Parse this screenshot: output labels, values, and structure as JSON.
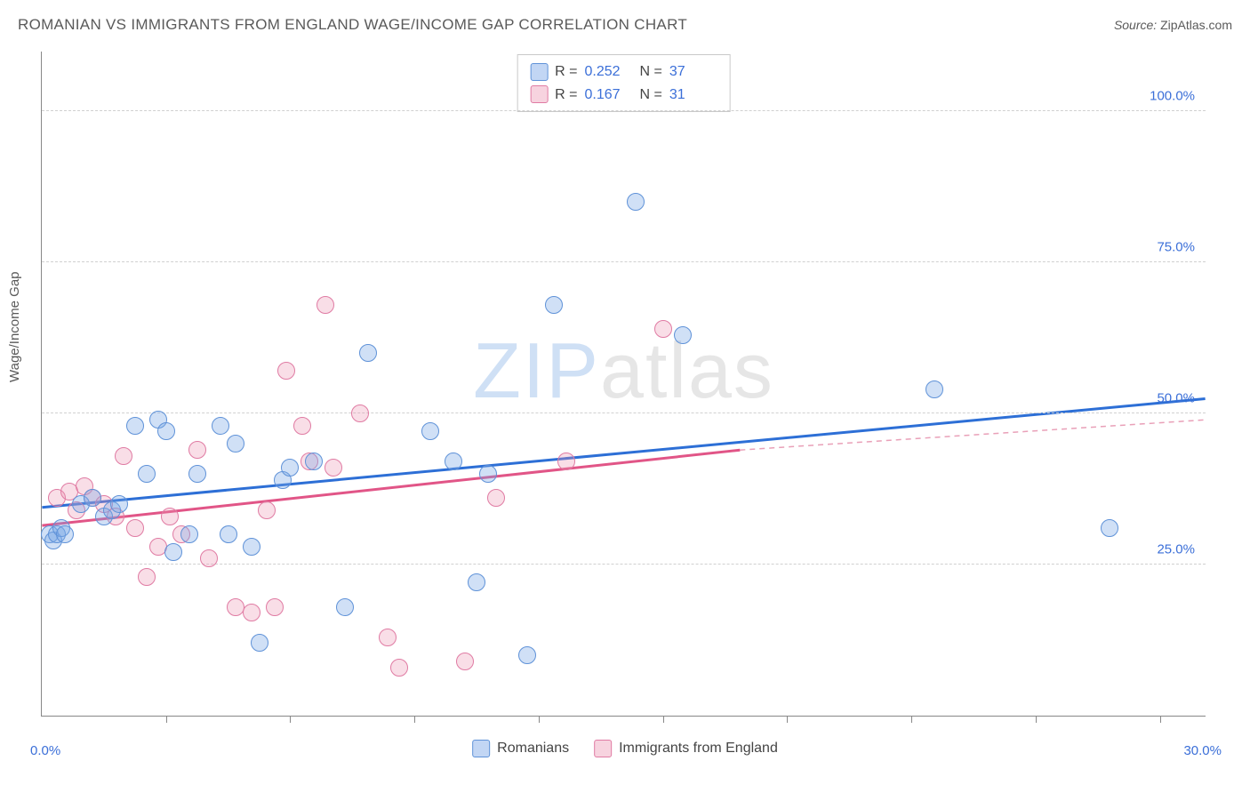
{
  "title": "ROMANIAN VS IMMIGRANTS FROM ENGLAND WAGE/INCOME GAP CORRELATION CHART",
  "source_label": "Source:",
  "source_value": "ZipAtlas.com",
  "watermark_z": "ZIP",
  "watermark_rest": "atlas",
  "ylabel": "Wage/Income Gap",
  "chart": {
    "type": "scatter",
    "xlim": [
      0,
      30
    ],
    "ylim": [
      0,
      110
    ],
    "y_ticks": [
      25,
      50,
      75,
      100
    ],
    "y_tick_labels": [
      "25.0%",
      "50.0%",
      "75.0%",
      "100.0%"
    ],
    "x_ticks": [
      3.2,
      6.4,
      9.6,
      12.8,
      16.0,
      19.2,
      22.4,
      25.6,
      28.8
    ],
    "x_min_label": "0.0%",
    "x_max_label": "30.0%",
    "background_color": "#ffffff",
    "grid_color": "#d0d0d0",
    "marker_size": 20,
    "series_a": {
      "name": "Romanians",
      "fill_color": "rgba(120,165,230,0.35)",
      "border_color": "#5f92d8",
      "points": [
        [
          0.2,
          30
        ],
        [
          0.3,
          29
        ],
        [
          0.4,
          30
        ],
        [
          0.5,
          31
        ],
        [
          0.6,
          30
        ],
        [
          1.0,
          35
        ],
        [
          1.3,
          36
        ],
        [
          1.6,
          33
        ],
        [
          1.8,
          34
        ],
        [
          2.0,
          35
        ],
        [
          2.4,
          48
        ],
        [
          2.7,
          40
        ],
        [
          3.0,
          49
        ],
        [
          3.2,
          47
        ],
        [
          3.4,
          27
        ],
        [
          3.8,
          30
        ],
        [
          4.0,
          40
        ],
        [
          4.6,
          48
        ],
        [
          4.8,
          30
        ],
        [
          5.0,
          45
        ],
        [
          5.4,
          28
        ],
        [
          5.6,
          12
        ],
        [
          6.2,
          39
        ],
        [
          6.4,
          41
        ],
        [
          7.0,
          42
        ],
        [
          7.8,
          18
        ],
        [
          8.4,
          60
        ],
        [
          10.0,
          47
        ],
        [
          10.6,
          42
        ],
        [
          11.2,
          22
        ],
        [
          11.5,
          40
        ],
        [
          12.5,
          10
        ],
        [
          13.2,
          68
        ],
        [
          15.3,
          85
        ],
        [
          16.5,
          63
        ],
        [
          23.0,
          54
        ],
        [
          27.5,
          31
        ]
      ],
      "trend": {
        "x1": 0,
        "y1": 34.5,
        "x2": 30,
        "y2": 52.5,
        "color": "#2d6fd6",
        "width": 3,
        "style": "solid"
      }
    },
    "series_b": {
      "name": "Immigrants from England",
      "fill_color": "rgba(235,145,175,0.30)",
      "border_color": "#e07ba3",
      "points": [
        [
          0.4,
          36
        ],
        [
          0.7,
          37
        ],
        [
          0.9,
          34
        ],
        [
          1.1,
          38
        ],
        [
          1.3,
          36
        ],
        [
          1.6,
          35
        ],
        [
          1.9,
          33
        ],
        [
          2.1,
          43
        ],
        [
          2.4,
          31
        ],
        [
          2.7,
          23
        ],
        [
          3.0,
          28
        ],
        [
          3.3,
          33
        ],
        [
          3.6,
          30
        ],
        [
          4.0,
          44
        ],
        [
          4.3,
          26
        ],
        [
          5.0,
          18
        ],
        [
          5.4,
          17
        ],
        [
          5.8,
          34
        ],
        [
          6.0,
          18
        ],
        [
          6.3,
          57
        ],
        [
          6.7,
          48
        ],
        [
          6.9,
          42
        ],
        [
          7.3,
          68
        ],
        [
          7.5,
          41
        ],
        [
          8.2,
          50
        ],
        [
          8.9,
          13
        ],
        [
          9.2,
          8
        ],
        [
          10.9,
          9
        ],
        [
          11.7,
          36
        ],
        [
          13.5,
          42
        ],
        [
          16.0,
          64
        ]
      ],
      "trend_solid": {
        "x1": 0,
        "y1": 31.5,
        "x2": 18,
        "y2": 44,
        "color": "#e15587",
        "width": 3
      },
      "trend_dashed": {
        "x1": 18,
        "y1": 44,
        "x2": 30,
        "y2": 49,
        "color": "#e9a0b8",
        "width": 1.5
      }
    }
  },
  "stats": {
    "rows": [
      {
        "series": "a",
        "r_label": "R =",
        "r": "0.252",
        "n_label": "N =",
        "n": "37"
      },
      {
        "series": "b",
        "r_label": "R =",
        "r": "0.167",
        "n_label": "N =",
        "n": "31"
      }
    ]
  },
  "legend": {
    "a": "Romanians",
    "b": "Immigrants from England"
  }
}
